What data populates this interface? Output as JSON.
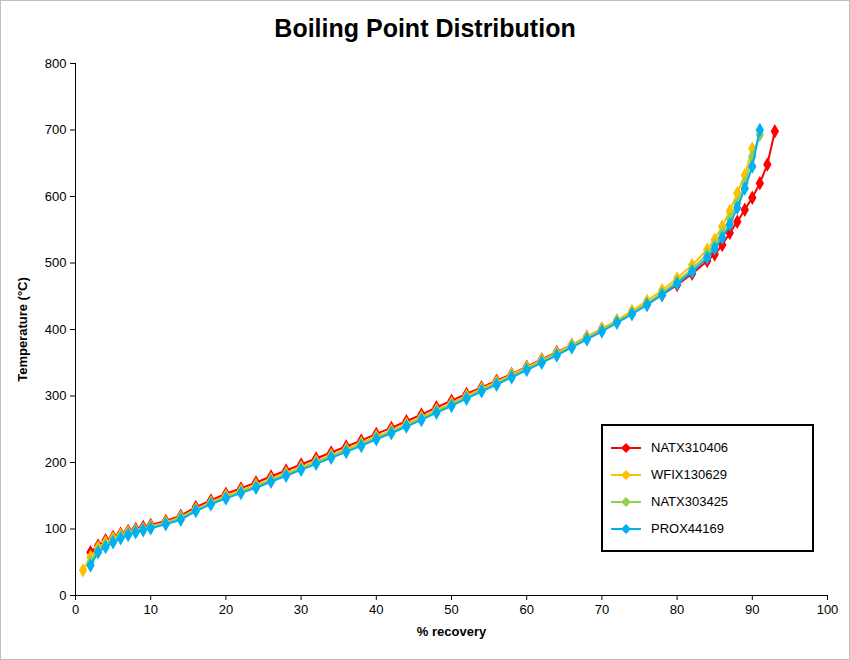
{
  "chart_data": {
    "type": "line",
    "title": "Boiling Point Distribution",
    "x_label": "% recovery",
    "y_label": "Temperature (°C)",
    "xlim": [
      0,
      100
    ],
    "xticks": [
      0,
      10,
      20,
      30,
      40,
      50,
      60,
      70,
      80,
      90,
      100
    ],
    "ylim": [
      0,
      800
    ],
    "yticks": [
      0,
      100,
      200,
      300,
      400,
      500,
      600,
      700,
      800
    ],
    "grid": false,
    "legend": "lower right",
    "marker": "diamond",
    "x": [
      1,
      2,
      3,
      4,
      5,
      6,
      7,
      8,
      9,
      10,
      12,
      14,
      16,
      18,
      20,
      22,
      24,
      26,
      28,
      30,
      32,
      34,
      36,
      38,
      40,
      42,
      44,
      46,
      48,
      50,
      52,
      54,
      56,
      58,
      60,
      62,
      64,
      66,
      68,
      70,
      72,
      74,
      76,
      78,
      80,
      82,
      84,
      85,
      86,
      87,
      88,
      89,
      90,
      91,
      92,
      93
    ],
    "series": [
      {
        "name": "NATX310406",
        "color": "#ff0000",
        "values": [
          null,
          65,
          75,
          83,
          88,
          93,
          97,
          100,
          103,
          106,
          112,
          120,
          133,
          143,
          153,
          161,
          170,
          179,
          188,
          197,
          206,
          215,
          224,
          233,
          243,
          252,
          262,
          272,
          283,
          293,
          303,
          313,
          323,
          333,
          344,
          355,
          366,
          377,
          389,
          401,
          413,
          425,
          438,
          452,
          467,
          484,
          503,
          513,
          527,
          545,
          562,
          580,
          598,
          620,
          648,
          698
        ]
      },
      {
        "name": "WFIX130629",
        "color": "#ffc000",
        "values": [
          38,
          58,
          72,
          80,
          86,
          91,
          95,
          98,
          100,
          104,
          110,
          118,
          130,
          140,
          150,
          158,
          166,
          175,
          184,
          193,
          202,
          211,
          220,
          229,
          239,
          248,
          258,
          268,
          279,
          289,
          300,
          311,
          321,
          332,
          343,
          354,
          365,
          377,
          389,
          401,
          414,
          428,
          443,
          459,
          477,
          497,
          520,
          535,
          555,
          578,
          605,
          632,
          672,
          null,
          null,
          null
        ]
      },
      {
        "name": "NATX303425",
        "color": "#92d050",
        "values": [
          null,
          50,
          68,
          76,
          83,
          89,
          93,
          97,
          100,
          103,
          109,
          117,
          129,
          139,
          148,
          156,
          164,
          173,
          182,
          191,
          200,
          209,
          218,
          227,
          237,
          246,
          256,
          266,
          277,
          287,
          298,
          309,
          319,
          330,
          341,
          352,
          363,
          375,
          387,
          399,
          412,
          425,
          439,
          455,
          472,
          491,
          513,
          527,
          545,
          566,
          590,
          620,
          660,
          693,
          null,
          null
        ]
      },
      {
        "name": "PROX44169",
        "color": "#00b0f0",
        "values": [
          null,
          45,
          65,
          73,
          80,
          86,
          91,
          95,
          98,
          101,
          107,
          114,
          127,
          137,
          146,
          154,
          162,
          171,
          180,
          189,
          198,
          207,
          216,
          225,
          235,
          244,
          254,
          264,
          275,
          285,
          296,
          307,
          317,
          328,
          339,
          350,
          361,
          373,
          385,
          397,
          410,
          423,
          437,
          452,
          469,
          487,
          508,
          522,
          538,
          558,
          583,
          612,
          645,
          700,
          null,
          null
        ]
      }
    ]
  }
}
